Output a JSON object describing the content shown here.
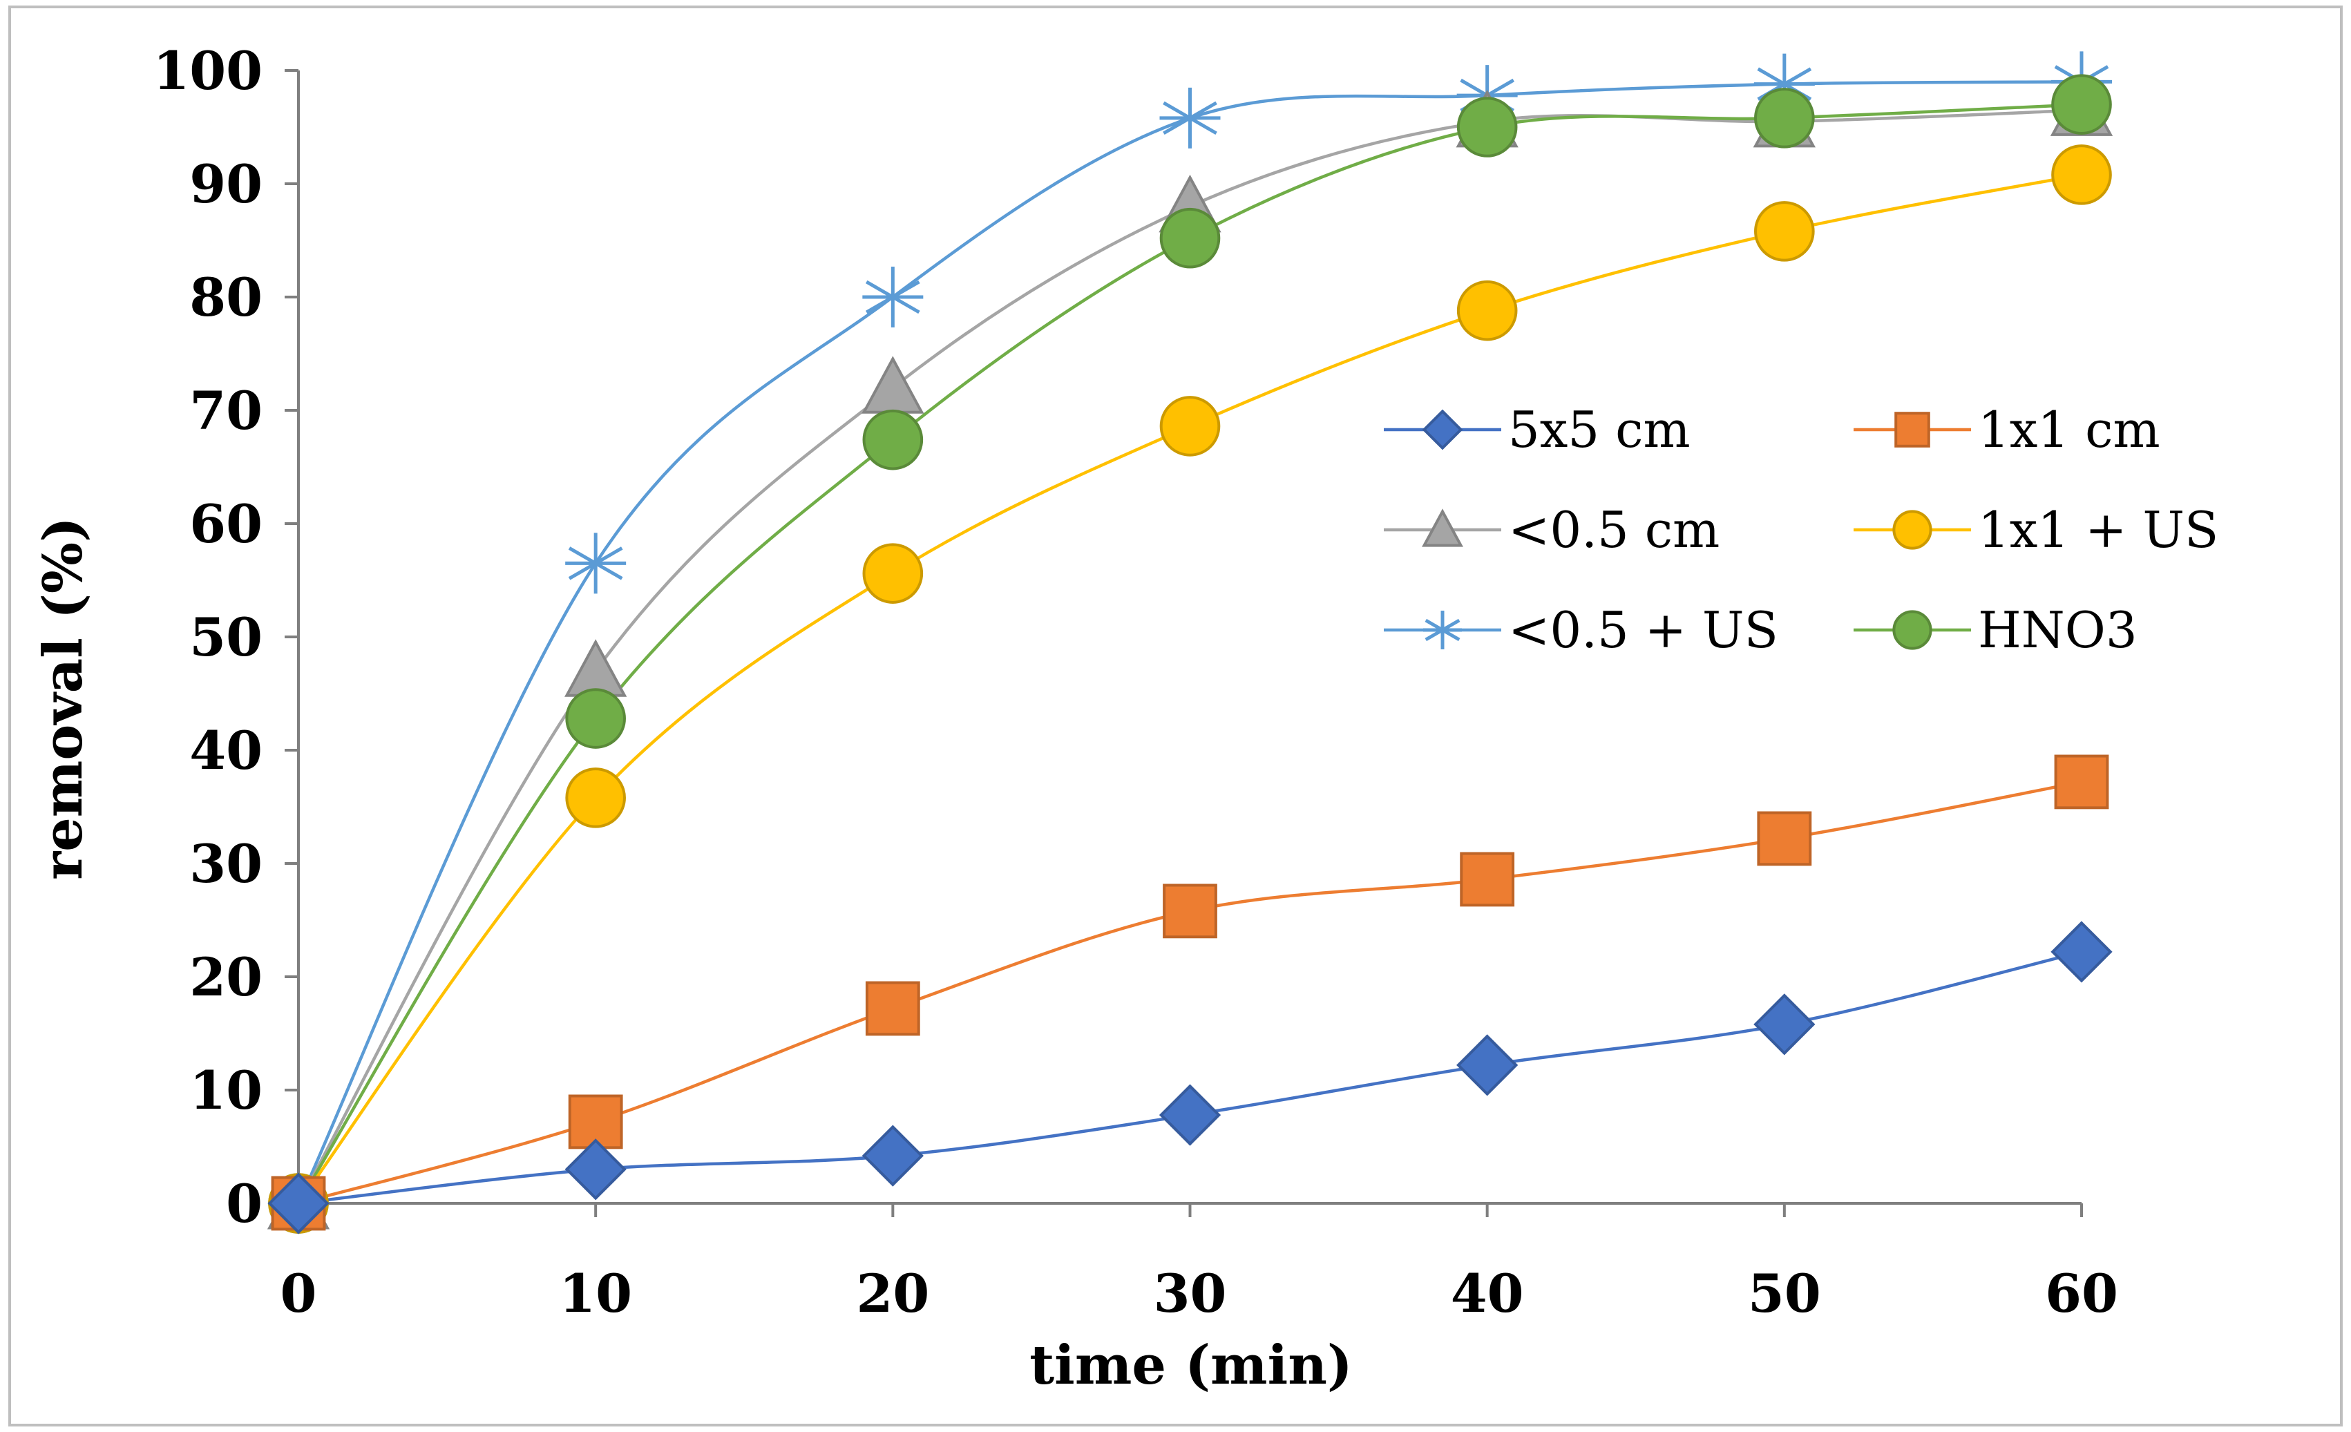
{
  "chart_data": {
    "type": "line",
    "title": "",
    "xlabel": "time (min)",
    "ylabel": "removal (%)",
    "x": [
      0,
      10,
      20,
      30,
      40,
      50,
      60
    ],
    "xticks": [
      "0",
      "10",
      "20",
      "30",
      "40",
      "50",
      "60"
    ],
    "yticks": [
      "0",
      "10",
      "20",
      "30",
      "40",
      "50",
      "60",
      "70",
      "80",
      "90",
      "100"
    ],
    "xlim": [
      0,
      60
    ],
    "ylim": [
      0,
      100
    ],
    "grid": false,
    "legend_position": "center-right",
    "series": [
      {
        "name": "5x5 cm",
        "marker": "diamond",
        "color": "#4472C4",
        "values": [
          0,
          3,
          4.2,
          7.8,
          12.2,
          15.8,
          22.2
        ]
      },
      {
        "name": "1x1 cm",
        "marker": "square",
        "color": "#ED7D31",
        "values": [
          0,
          7.2,
          17.2,
          25.8,
          28.6,
          32.2,
          37.2
        ]
      },
      {
        "name": "<0.5 cm",
        "marker": "triangle",
        "color": "#A5A5A5",
        "values": [
          0,
          47,
          72,
          88,
          95.5,
          95.5,
          96.5
        ]
      },
      {
        "name": "1x1 + US",
        "marker": "circle",
        "color": "#FFC000",
        "values": [
          0,
          35.8,
          55.6,
          68.6,
          78.8,
          85.8,
          90.8
        ]
      },
      {
        "name": "<0.5 + US",
        "marker": "star",
        "color": "#5B9BD5",
        "values": [
          0,
          56.5,
          80,
          95.8,
          97.8,
          98.8,
          99
        ]
      },
      {
        "name": "HNO3",
        "marker": "circle",
        "color": "#70AD47",
        "values": [
          0,
          42.8,
          67.4,
          85.2,
          95,
          95.8,
          97
        ]
      }
    ]
  }
}
